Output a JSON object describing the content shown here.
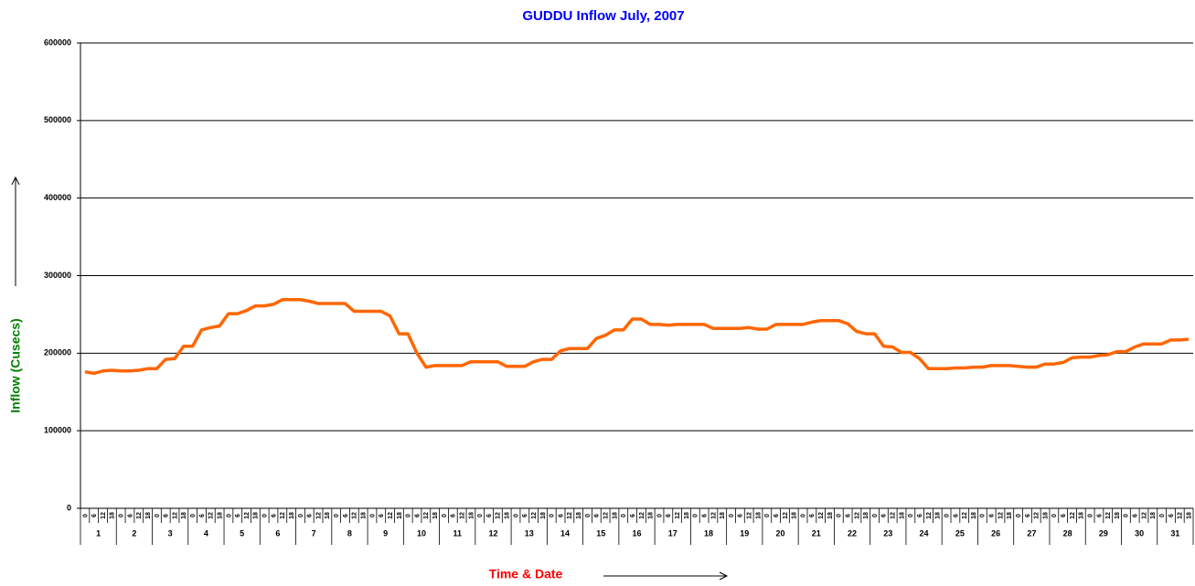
{
  "chart_data": {
    "type": "line",
    "title": "GUDDU Inflow July, 2007",
    "x_label": "Time & Date",
    "y_label": "Inflow (Cusecs)",
    "categories": [
      "0",
      "6",
      "12",
      "18",
      "0",
      "6",
      "12",
      "18",
      "0",
      "6",
      "12",
      "18",
      "0",
      "6",
      "12",
      "18",
      "0",
      "6",
      "12",
      "18",
      "0",
      "6",
      "12",
      "18",
      "0",
      "6",
      "12",
      "18",
      "0",
      "6",
      "12",
      "18",
      "0",
      "6",
      "12",
      "18",
      "0",
      "6",
      "12",
      "18",
      "0",
      "6",
      "12",
      "18",
      "0",
      "6",
      "12",
      "18",
      "0",
      "6",
      "12",
      "18",
      "0",
      "6",
      "12",
      "18",
      "0",
      "6",
      "12",
      "18",
      "0",
      "6",
      "12",
      "18",
      "0",
      "6",
      "12",
      "18",
      "0",
      "6",
      "12",
      "18",
      "0",
      "6",
      "12",
      "18",
      "0",
      "6",
      "12",
      "18",
      "0",
      "6",
      "12",
      "18",
      "0",
      "6",
      "12",
      "18",
      "0",
      "6",
      "12",
      "18",
      "0",
      "6",
      "12",
      "18",
      "0",
      "6",
      "12",
      "18",
      "0",
      "6",
      "12",
      "18",
      "0",
      "6",
      "12",
      "18",
      "0",
      "6",
      "12",
      "18",
      "0",
      "6",
      "12",
      "18",
      "0",
      "6",
      "12",
      "18",
      "0",
      "6",
      "12",
      "18"
    ],
    "groups": [
      "1",
      "2",
      "3",
      "4",
      "5",
      "6",
      "7",
      "8",
      "9",
      "10",
      "11",
      "12",
      "13",
      "14",
      "15",
      "16",
      "17",
      "18",
      "19",
      "20",
      "21",
      "22",
      "23",
      "24",
      "25",
      "26",
      "27",
      "28",
      "29",
      "30",
      "31"
    ],
    "series": [
      {
        "name": "Inflow",
        "color": "#ff6600",
        "values": [
          176000,
          174000,
          177000,
          178000,
          177000,
          177000,
          178000,
          180000,
          180000,
          192000,
          193000,
          209000,
          209000,
          230000,
          233000,
          235000,
          251000,
          251000,
          255000,
          261000,
          261000,
          263000,
          269000,
          269000,
          269000,
          267000,
          264000,
          264000,
          264000,
          264000,
          254000,
          254000,
          254000,
          254000,
          248000,
          225000,
          225000,
          200000,
          182000,
          184000,
          184000,
          184000,
          184000,
          189000,
          189000,
          189000,
          189000,
          183000,
          183000,
          183000,
          189000,
          192000,
          192000,
          203000,
          206000,
          206000,
          206000,
          219000,
          223000,
          230000,
          230000,
          244000,
          244000,
          237000,
          237000,
          236000,
          237000,
          237000,
          237000,
          237000,
          232000,
          232000,
          232000,
          232000,
          233000,
          231000,
          231000,
          237000,
          237000,
          237000,
          237000,
          240000,
          242000,
          242000,
          242000,
          238000,
          228000,
          225000,
          225000,
          209000,
          208000,
          201000,
          201000,
          193000,
          180000,
          180000,
          180000,
          181000,
          181000,
          182000,
          182000,
          184000,
          184000,
          184000,
          183000,
          182000,
          182000,
          186000,
          186000,
          188000,
          194000,
          195000,
          195000,
          197000,
          198000,
          202000,
          202000,
          208000,
          212000,
          212000,
          212000,
          217000,
          217000,
          218000
        ]
      }
    ],
    "ylim": [
      0,
      600000
    ],
    "yticks": [
      0,
      100000,
      200000,
      300000,
      400000,
      500000,
      600000
    ],
    "grid": true
  }
}
